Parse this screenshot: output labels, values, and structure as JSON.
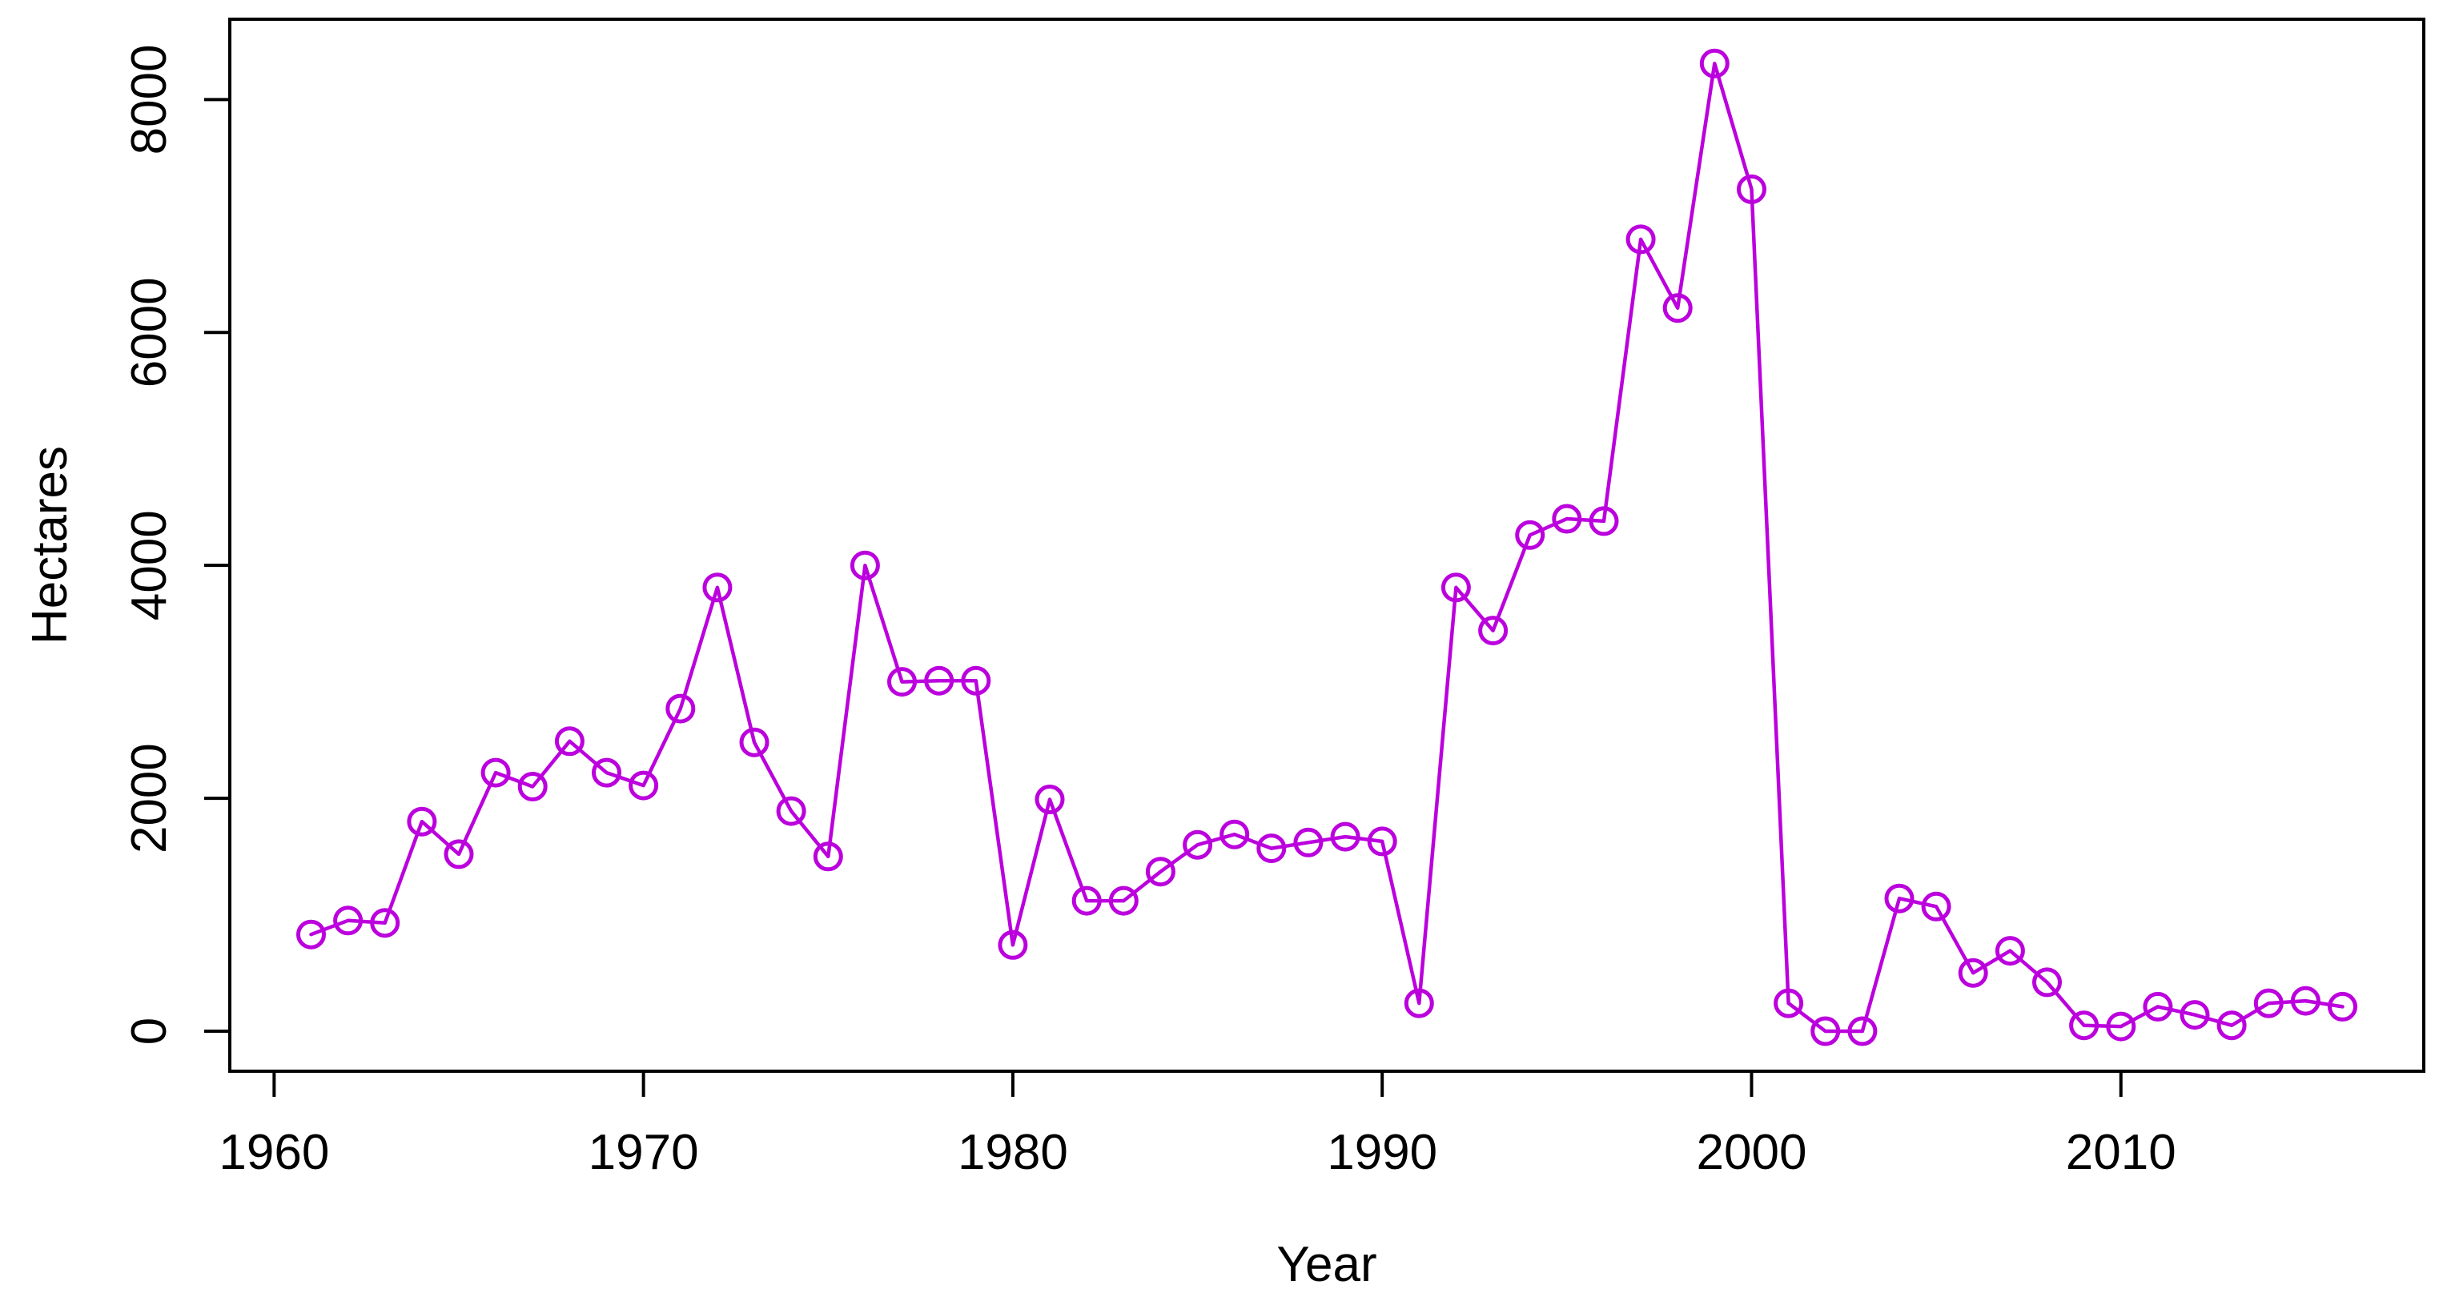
{
  "chart_data": {
    "type": "line",
    "title": "",
    "xlabel": "Year",
    "ylabel": "Hectares",
    "x": [
      1961,
      1962,
      1963,
      1964,
      1965,
      1966,
      1967,
      1968,
      1969,
      1970,
      1971,
      1972,
      1973,
      1974,
      1975,
      1976,
      1977,
      1978,
      1979,
      1980,
      1981,
      1982,
      1983,
      1984,
      1985,
      1986,
      1987,
      1988,
      1989,
      1990,
      1991,
      1992,
      1993,
      1994,
      1995,
      1996,
      1997,
      1998,
      1999,
      2000,
      2001,
      2002,
      2003,
      2004,
      2005,
      2006,
      2007,
      2008,
      2009,
      2010,
      2011,
      2012,
      2013,
      2014,
      2015,
      2016
    ],
    "series": [
      {
        "name": "Hectares",
        "values": [
          830,
          950,
          930,
          1800,
          1520,
          2220,
          2100,
          2490,
          2220,
          2110,
          2770,
          3810,
          2480,
          1890,
          1500,
          4000,
          3000,
          3010,
          3010,
          740,
          1990,
          1120,
          1120,
          1370,
          1600,
          1690,
          1570,
          1620,
          1670,
          1630,
          240,
          3810,
          3440,
          4260,
          4400,
          4380,
          6800,
          6210,
          8310,
          7230,
          240,
          0,
          0,
          1140,
          1070,
          500,
          690,
          420,
          50,
          40,
          210,
          140,
          50,
          240,
          260,
          210
        ]
      }
    ],
    "xticks": [
      1960,
      1970,
      1980,
      1990,
      2000,
      2010
    ],
    "yticks": [
      0,
      2000,
      4000,
      6000,
      8000
    ],
    "xlim": [
      1958.8,
      2018.2
    ],
    "ylim": [
      -344,
      8690
    ],
    "grid": false,
    "legend_position": "none",
    "marker": "open-circle",
    "line_color": "#BB00DD",
    "axis_color": "#000000",
    "background_color": "#FFFFFF"
  }
}
